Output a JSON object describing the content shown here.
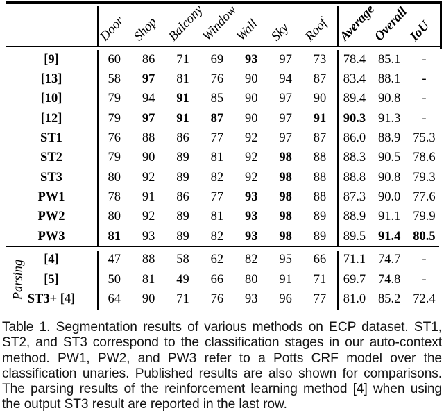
{
  "table": {
    "columns": [
      {
        "label": "Door",
        "bold": false
      },
      {
        "label": "Shop",
        "bold": false
      },
      {
        "label": "Balcony",
        "bold": false
      },
      {
        "label": "Window",
        "bold": false
      },
      {
        "label": "Wall",
        "bold": false
      },
      {
        "label": "Sky",
        "bold": false
      },
      {
        "label": "Roof",
        "bold": false
      },
      {
        "label": "Average",
        "bold": true
      },
      {
        "label": "Overall",
        "bold": true
      },
      {
        "label": "IoU",
        "bold": true
      }
    ],
    "sections": [
      {
        "name": "methods",
        "group_label": "",
        "rows": [
          {
            "label": "[9]",
            "values": [
              "60",
              "86",
              "71",
              "69",
              "93",
              "97",
              "73",
              "78.4",
              "85.1",
              "-"
            ],
            "bold": [
              4
            ]
          },
          {
            "label": "[13]",
            "values": [
              "58",
              "97",
              "81",
              "76",
              "90",
              "94",
              "87",
              "83.4",
              "88.1",
              "-"
            ],
            "bold": [
              1
            ]
          },
          {
            "label": "[10]",
            "values": [
              "79",
              "94",
              "91",
              "85",
              "90",
              "97",
              "90",
              "89.4",
              "90.8",
              "-"
            ],
            "bold": [
              2
            ]
          },
          {
            "label": "[12]",
            "values": [
              "79",
              "97",
              "91",
              "87",
              "90",
              "97",
              "91",
              "90.3",
              "91.3",
              "-"
            ],
            "bold": [
              1,
              2,
              3,
              6,
              7
            ]
          },
          {
            "label": "ST1",
            "values": [
              "76",
              "88",
              "86",
              "77",
              "92",
              "97",
              "87",
              "86.0",
              "88.9",
              "75.3"
            ],
            "bold": []
          },
          {
            "label": "ST2",
            "values": [
              "79",
              "90",
              "89",
              "81",
              "92",
              "98",
              "88",
              "88.3",
              "90.5",
              "78.6"
            ],
            "bold": [
              5
            ]
          },
          {
            "label": "ST3",
            "values": [
              "80",
              "92",
              "89",
              "82",
              "92",
              "98",
              "88",
              "88.8",
              "90.8",
              "79.3"
            ],
            "bold": [
              5
            ]
          },
          {
            "label": "PW1",
            "values": [
              "78",
              "91",
              "86",
              "77",
              "93",
              "98",
              "88",
              "87.3",
              "90.0",
              "77.6"
            ],
            "bold": [
              4,
              5
            ]
          },
          {
            "label": "PW2",
            "values": [
              "80",
              "92",
              "89",
              "81",
              "93",
              "98",
              "89",
              "88.9",
              "91.1",
              "79.9"
            ],
            "bold": [
              4,
              5
            ]
          },
          {
            "label": "PW3",
            "values": [
              "81",
              "93",
              "89",
              "82",
              "93",
              "98",
              "89",
              "89.5",
              "91.4",
              "80.5"
            ],
            "bold": [
              0,
              4,
              5,
              8,
              9
            ]
          }
        ]
      },
      {
        "name": "parsing",
        "group_label": "Parsing",
        "rows": [
          {
            "label": "[4]",
            "values": [
              "47",
              "88",
              "58",
              "62",
              "82",
              "95",
              "66",
              "71.1",
              "74.7",
              "-"
            ],
            "bold": []
          },
          {
            "label": "[5]",
            "values": [
              "50",
              "81",
              "49",
              "66",
              "80",
              "91",
              "71",
              "69.7",
              "74.8",
              "-"
            ],
            "bold": []
          },
          {
            "label": "ST3+ [4]",
            "values": [
              "64",
              "90",
              "71",
              "76",
              "93",
              "96",
              "77",
              "81.0",
              "85.2",
              "72.4"
            ],
            "bold": []
          }
        ]
      }
    ]
  },
  "caption": {
    "lines": [
      "Table 1. Segmentation results of various methods on ECP dataset. ST1,",
      "ST2, and ST3 correspond to the classification stages in our auto-context",
      "method. PW1, PW2, and PW3 refer to a Potts CRF model over the",
      "classification unaries. Published results are also shown for comparisons.",
      "The parsing results of the reinforcement learning method [4] when using",
      "the output ST3 result are reported in the last row."
    ]
  }
}
